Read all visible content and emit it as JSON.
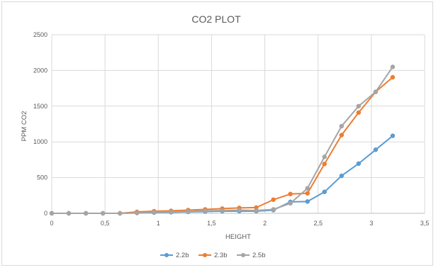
{
  "chart_data": {
    "type": "scatter",
    "title": "CO2 PLOT",
    "xlabel": "HEIGHT",
    "ylabel": "PPM CO2",
    "xlim": [
      0,
      3.5
    ],
    "ylim": [
      0,
      2500
    ],
    "x_ticks": [
      "0",
      "0,5",
      "1",
      "1,5",
      "2",
      "2,5",
      "3",
      "3,5"
    ],
    "y_ticks": [
      "0",
      "500",
      "1000",
      "1500",
      "2000",
      "2500"
    ],
    "grid": "vertical and horizontal major gridlines",
    "legend_position": "bottom",
    "series": [
      {
        "name": "2.2b",
        "color": "#5b9bd5",
        "points": [
          [
            0.0,
            0
          ],
          [
            0.16,
            0
          ],
          [
            0.32,
            0
          ],
          [
            0.48,
            0
          ],
          [
            0.64,
            0
          ],
          [
            0.8,
            5
          ],
          [
            0.96,
            10
          ],
          [
            1.12,
            15
          ],
          [
            1.28,
            20
          ],
          [
            1.44,
            25
          ],
          [
            1.6,
            30
          ],
          [
            1.76,
            30
          ],
          [
            1.92,
            30
          ],
          [
            2.08,
            45
          ],
          [
            2.24,
            160
          ],
          [
            2.4,
            165
          ],
          [
            2.56,
            300
          ],
          [
            2.72,
            525
          ],
          [
            2.88,
            695
          ],
          [
            3.04,
            890
          ],
          [
            3.2,
            1085
          ]
        ]
      },
      {
        "name": "2.3b",
        "color": "#ed7d31",
        "points": [
          [
            0.0,
            0
          ],
          [
            0.16,
            0
          ],
          [
            0.32,
            0
          ],
          [
            0.48,
            0
          ],
          [
            0.64,
            0
          ],
          [
            0.8,
            20
          ],
          [
            0.96,
            30
          ],
          [
            1.12,
            35
          ],
          [
            1.28,
            45
          ],
          [
            1.44,
            55
          ],
          [
            1.6,
            65
          ],
          [
            1.76,
            75
          ],
          [
            1.92,
            80
          ],
          [
            2.08,
            190
          ],
          [
            2.24,
            270
          ],
          [
            2.4,
            280
          ],
          [
            2.56,
            690
          ],
          [
            2.72,
            1095
          ],
          [
            2.88,
            1410
          ],
          [
            3.04,
            1700
          ],
          [
            3.2,
            1905
          ]
        ]
      },
      {
        "name": "2.5b",
        "color": "#a5a5a5",
        "points": [
          [
            0.0,
            0
          ],
          [
            0.16,
            0
          ],
          [
            0.32,
            0
          ],
          [
            0.48,
            0
          ],
          [
            0.64,
            0
          ],
          [
            0.8,
            5
          ],
          [
            0.96,
            15
          ],
          [
            1.12,
            20
          ],
          [
            1.28,
            25
          ],
          [
            1.44,
            35
          ],
          [
            1.6,
            40
          ],
          [
            1.76,
            45
          ],
          [
            1.92,
            40
          ],
          [
            2.08,
            55
          ],
          [
            2.24,
            140
          ],
          [
            2.4,
            350
          ],
          [
            2.56,
            790
          ],
          [
            2.72,
            1220
          ],
          [
            2.88,
            1500
          ],
          [
            3.04,
            1700
          ],
          [
            3.2,
            2050
          ]
        ]
      }
    ]
  }
}
